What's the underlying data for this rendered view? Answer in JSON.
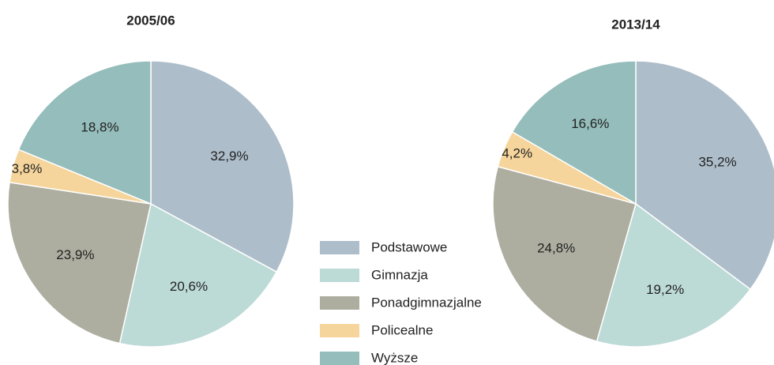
{
  "chart_data": [
    {
      "type": "pie",
      "title": "2005/06",
      "categories": [
        "Podstawowe",
        "Gimnazja",
        "Ponadgimnazjalne",
        "Policealne",
        "Wyższe"
      ],
      "values": [
        32.9,
        20.6,
        23.9,
        3.8,
        18.8
      ],
      "value_labels": [
        "32,9%",
        "20,6%",
        "23,9%",
        "3,8%",
        "18,8%"
      ],
      "colors": [
        "#adbdca",
        "#bcdad6",
        "#adaea0",
        "#f6d59c",
        "#94bdbb"
      ]
    },
    {
      "type": "pie",
      "title": "2013/14",
      "categories": [
        "Podstawowe",
        "Gimnazja",
        "Ponadgimnazjalne",
        "Policealne",
        "Wyższe"
      ],
      "values": [
        35.2,
        19.2,
        24.8,
        4.2,
        16.6
      ],
      "value_labels": [
        "35,2%",
        "19,2%",
        "24,8%",
        "4,2%",
        "16,6%"
      ],
      "colors": [
        "#adbdca",
        "#bcdad6",
        "#adaea0",
        "#f6d59c",
        "#94bdbb"
      ]
    }
  ]
}
